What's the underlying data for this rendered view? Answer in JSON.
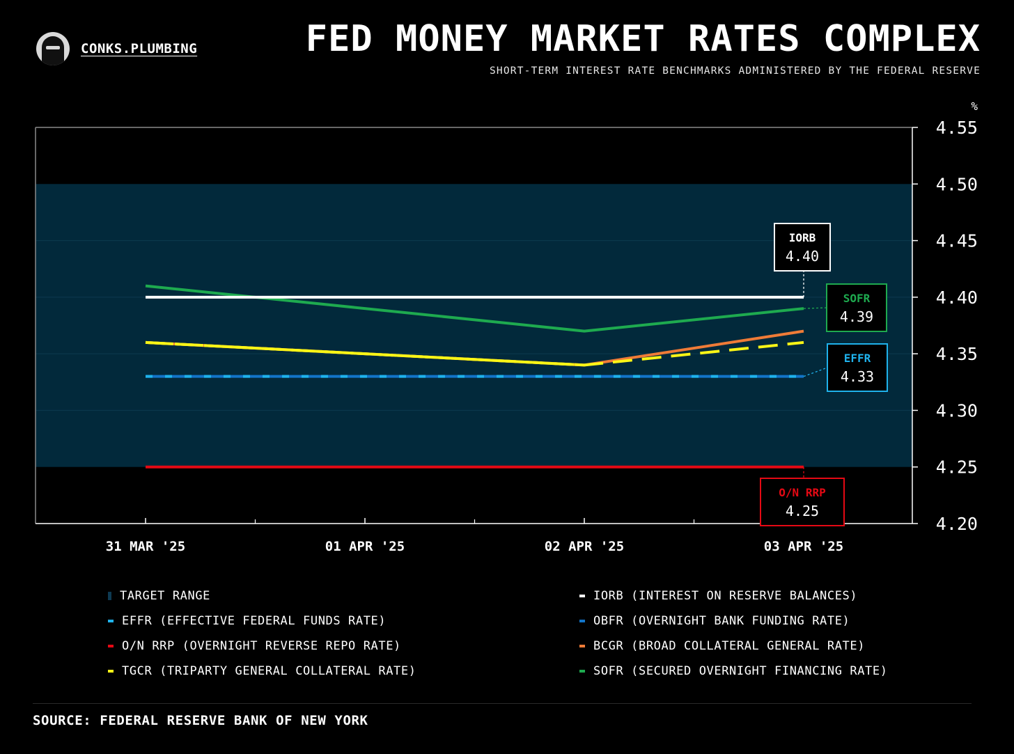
{
  "brand": {
    "name": "CONKS.PLUMBING"
  },
  "header": {
    "title": "FED MONEY MARKET RATES COMPLEX",
    "subtitle": "SHORT-TERM INTEREST RATE BENCHMARKS ADMINISTERED BY THE FEDERAL RESERVE"
  },
  "chart_data": {
    "type": "line",
    "title": "FED MONEY MARKET RATES COMPLEX",
    "ylabel": "%",
    "ylim": [
      4.2,
      4.55
    ],
    "yticks": [
      "4.55",
      "4.50",
      "4.45",
      "4.40",
      "4.35",
      "4.30",
      "4.25",
      "4.20"
    ],
    "categories": [
      "31 MAR '25",
      "01 APR '25",
      "02 APR '25",
      "03 APR '25"
    ],
    "target_range": {
      "low": 4.25,
      "high": 4.5,
      "color": "#02293b"
    },
    "series": [
      {
        "name": "IORB",
        "values": [
          4.4,
          4.4,
          4.4,
          4.4
        ],
        "color": "#ffffff"
      },
      {
        "name": "SOFR",
        "values": [
          4.41,
          4.39,
          4.37,
          4.39
        ],
        "color": "#1eaa4f"
      },
      {
        "name": "BCGR",
        "values": [
          4.36,
          4.35,
          4.34,
          4.37
        ],
        "color": "#ef7b37"
      },
      {
        "name": "TGCR",
        "values": [
          4.36,
          4.35,
          4.34,
          4.36
        ],
        "color": "#fbf516"
      },
      {
        "name": "OBFR",
        "values": [
          4.33,
          4.33,
          4.33,
          4.33
        ],
        "color": "#1274c8"
      },
      {
        "name": "EFFR",
        "values": [
          4.33,
          4.33,
          4.33,
          4.33
        ],
        "color": "#1fb2ec"
      },
      {
        "name": "O/N RRP",
        "values": [
          4.25,
          4.25,
          4.25,
          4.25
        ],
        "color": "#e50914"
      }
    ],
    "callouts": [
      {
        "name": "IORB",
        "value": "4.40",
        "color": "#ffffff"
      },
      {
        "name": "SOFR",
        "value": "4.39",
        "color": "#1eaa4f"
      },
      {
        "name": "EFFR",
        "value": "4.33",
        "color": "#1fb2ec"
      },
      {
        "name": "O/N RRP",
        "value": "4.25",
        "color": "#e50914"
      }
    ]
  },
  "legend": [
    {
      "label": "TARGET RANGE",
      "color": "#02293b",
      "kind": "range"
    },
    {
      "label": "IORB (INTEREST ON RESERVE BALANCES)",
      "color": "#ffffff",
      "kind": "line"
    },
    {
      "label": "EFFR (EFFECTIVE FEDERAL FUNDS RATE)",
      "color": "#1fb2ec",
      "kind": "line"
    },
    {
      "label": "OBFR (OVERNIGHT BANK FUNDING RATE)",
      "color": "#1274c8",
      "kind": "line"
    },
    {
      "label": "O/N RRP (OVERNIGHT REVERSE REPO RATE)",
      "color": "#e50914",
      "kind": "line"
    },
    {
      "label": "BCGR (BROAD COLLATERAL GENERAL RATE)",
      "color": "#ef7b37",
      "kind": "line"
    },
    {
      "label": "TGCR (TRIPARTY GENERAL COLLATERAL RATE)",
      "color": "#fbf516",
      "kind": "line"
    },
    {
      "label": "SOFR (SECURED OVERNIGHT FINANCING RATE)",
      "color": "#1eaa4f",
      "kind": "line"
    }
  ],
  "footer": {
    "source": "SOURCE: FEDERAL RESERVE BANK OF NEW YORK"
  }
}
